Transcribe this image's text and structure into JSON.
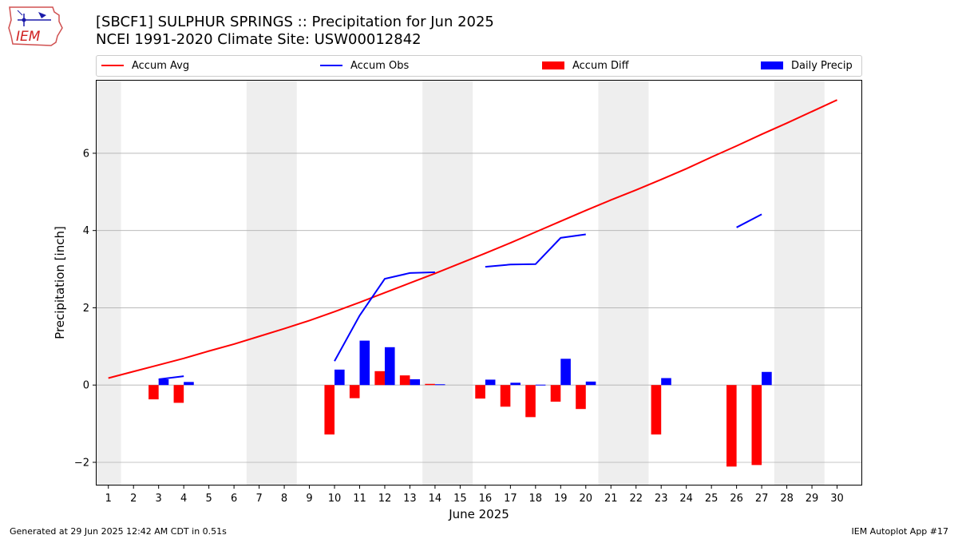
{
  "header": {
    "title_line1": "[SBCF1] SULPHUR SPRINGS :: Precipitation for Jun 2025",
    "title_line2": "NCEI 1991-2020 Climate Site: USW00012842"
  },
  "logo": {
    "text": "IEM"
  },
  "footer": {
    "generated": "Generated at 29 Jun 2025 12:42 AM CDT in 0.51s",
    "app": "IEM Autoplot App #17"
  },
  "colors": {
    "accum_avg": "#ff0000",
    "accum_obs": "#0000ff",
    "accum_diff": "#ff0000",
    "daily_precip": "#0000ff",
    "weekend_shade": "#eeeeee",
    "grid": "#b0b0b0"
  },
  "chart_data": {
    "type": "bar",
    "xlabel": "June 2025",
    "ylabel": "Precipitation [inch]",
    "xlim": [
      0.5,
      31.0
    ],
    "ylim": [
      -2.6,
      7.9
    ],
    "yticks": [
      -2,
      0,
      2,
      4,
      6
    ],
    "ytick_labels": [
      "−2",
      "0",
      "2",
      "4",
      "6"
    ],
    "xticks": [
      1,
      2,
      3,
      4,
      5,
      6,
      7,
      8,
      9,
      10,
      11,
      12,
      13,
      14,
      15,
      16,
      17,
      18,
      19,
      20,
      21,
      22,
      23,
      24,
      25,
      26,
      27,
      28,
      29,
      30
    ],
    "grid": "horizontal",
    "legend_position": "top",
    "weekend_spans": [
      [
        0.5,
        1.5
      ],
      [
        6.5,
        8.5
      ],
      [
        13.5,
        15.5
      ],
      [
        20.5,
        22.5
      ],
      [
        27.5,
        29.5
      ]
    ],
    "legend": [
      "Accum Avg",
      "Accum Obs",
      "Accum Diff",
      "Daily Precip"
    ],
    "series": [
      {
        "name": "Accum Avg",
        "type": "line",
        "x": [
          1,
          2,
          3,
          4,
          5,
          6,
          7,
          8,
          9,
          10,
          11,
          12,
          13,
          14,
          15,
          16,
          17,
          18,
          19,
          20,
          21,
          22,
          23,
          24,
          25,
          26,
          27,
          28,
          29,
          30
        ],
        "values": [
          0.18,
          0.35,
          0.52,
          0.69,
          0.88,
          1.06,
          1.26,
          1.46,
          1.67,
          1.9,
          2.14,
          2.39,
          2.64,
          2.89,
          3.15,
          3.41,
          3.68,
          3.96,
          4.24,
          4.52,
          4.79,
          5.05,
          5.32,
          5.6,
          5.9,
          6.19,
          6.49,
          6.78,
          7.08,
          7.38
        ]
      },
      {
        "name": "Accum Obs",
        "type": "line",
        "segments": [
          {
            "x": [
              3,
              4
            ],
            "values": [
              0.15,
              0.23
            ]
          },
          {
            "x": [
              10,
              11,
              12,
              13,
              14
            ],
            "values": [
              0.62,
              1.8,
              2.75,
              2.9,
              2.92
            ]
          },
          {
            "x": [
              16,
              17,
              18,
              19,
              20
            ],
            "values": [
              3.06,
              3.12,
              3.13,
              3.81,
              3.9
            ]
          },
          {
            "x": [
              26,
              27
            ],
            "values": [
              4.08,
              4.42
            ]
          }
        ]
      },
      {
        "name": "Accum Diff",
        "type": "bar",
        "x": [
          3,
          4,
          10,
          11,
          12,
          13,
          14,
          16,
          17,
          18,
          19,
          20,
          23,
          26,
          27
        ],
        "values": [
          -0.37,
          -0.46,
          -1.28,
          -0.34,
          0.36,
          0.25,
          0.03,
          -0.35,
          -0.56,
          -0.83,
          -0.43,
          -0.62,
          -1.28,
          -2.11,
          -2.07
        ]
      },
      {
        "name": "Daily Precip",
        "type": "bar",
        "x": [
          3,
          4,
          10,
          11,
          12,
          13,
          14,
          16,
          17,
          18,
          19,
          20,
          23,
          27
        ],
        "values": [
          0.15,
          0.08,
          0.4,
          1.15,
          0.98,
          0.15,
          0.02,
          0.14,
          0.06,
          0.01,
          0.68,
          0.09,
          0.18,
          0.34
        ]
      }
    ]
  }
}
